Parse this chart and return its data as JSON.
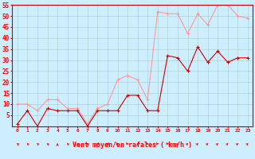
{
  "xlabel": "Vent moyen/en rafales ( km/h )",
  "background_color": "#cceeff",
  "grid_color": "#aacccc",
  "x": [
    0,
    1,
    2,
    3,
    4,
    5,
    6,
    7,
    8,
    9,
    10,
    11,
    12,
    13,
    14,
    15,
    16,
    17,
    18,
    19,
    20,
    21,
    22,
    23
  ],
  "y_mean": [
    1,
    7,
    0,
    8,
    7,
    7,
    7,
    0,
    7,
    7,
    7,
    14,
    14,
    7,
    7,
    32,
    31,
    25,
    36,
    29,
    34,
    29,
    31,
    31
  ],
  "y_gust": [
    10,
    10,
    7,
    12,
    12,
    8,
    8,
    1,
    8,
    10,
    21,
    23,
    21,
    12,
    52,
    51,
    51,
    42,
    51,
    46,
    55,
    55,
    50,
    49
  ],
  "mean_color": "#cc0000",
  "gust_color": "#ff9999",
  "ylim_min": 0,
  "ylim_max": 55,
  "ytick_vals": [
    5,
    10,
    15,
    20,
    25,
    30,
    35,
    40,
    45,
    50,
    55
  ],
  "ytick_labels": [
    "5",
    "10",
    "15",
    "20",
    "25",
    "30",
    "35",
    "40",
    "45",
    "50",
    "55"
  ],
  "marker_size": 2.5,
  "linewidth": 0.8
}
